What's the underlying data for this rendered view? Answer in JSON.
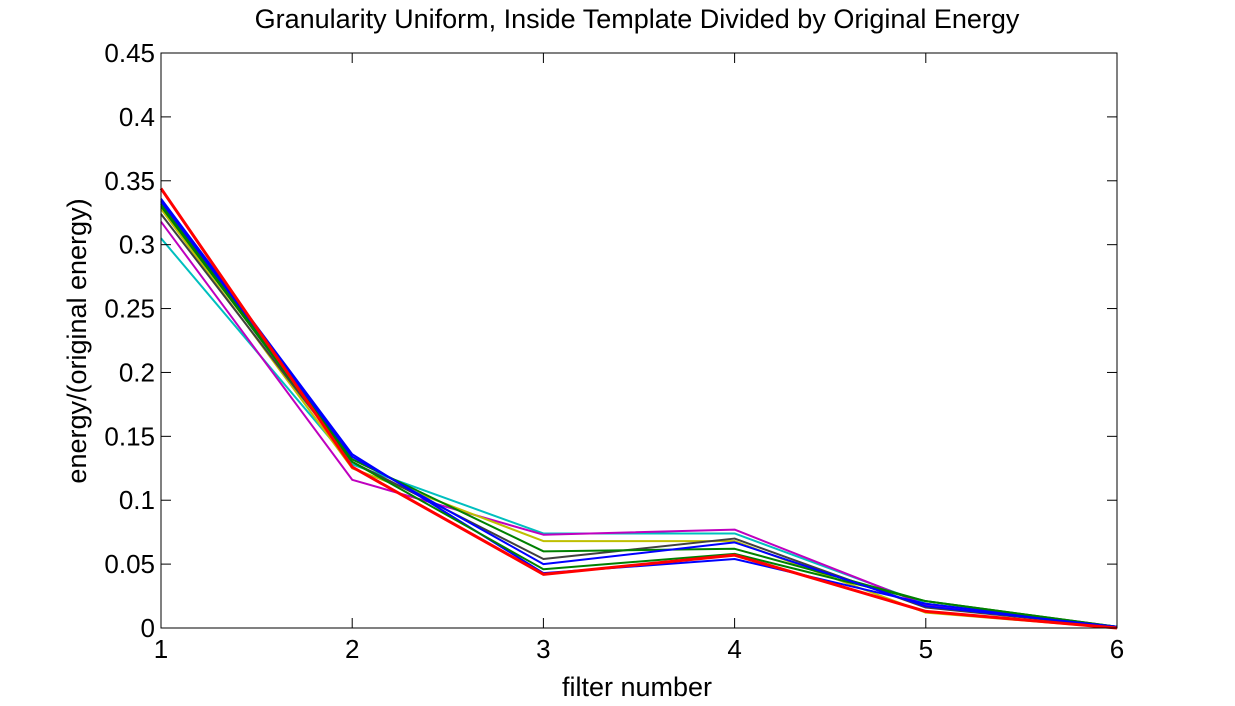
{
  "chart_data": {
    "type": "line",
    "title": "Granularity Uniform, Inside Template Divided by Original Energy",
    "xlabel": "filter number",
    "ylabel": "energy/(original energy)",
    "x": [
      1,
      2,
      3,
      4,
      5,
      6
    ],
    "xlim": [
      1,
      6
    ],
    "ylim": [
      0,
      0.45
    ],
    "xticks": [
      "1",
      "2",
      "3",
      "4",
      "5",
      "6"
    ],
    "yticks": [
      "0",
      "0.05",
      "0.1",
      "0.15",
      "0.2",
      "0.25",
      "0.3",
      "0.35",
      "0.4",
      "0.45"
    ],
    "grid": false,
    "legend": false,
    "series": [
      {
        "color": "#00bfbf",
        "values": [
          0.305,
          0.128,
          0.074,
          0.074,
          0.019,
          0.001
        ]
      },
      {
        "color": "#bf00bf",
        "values": [
          0.318,
          0.116,
          0.073,
          0.077,
          0.018,
          0.001
        ]
      },
      {
        "color": "#bfbf00",
        "values": [
          0.328,
          0.125,
          0.068,
          0.068,
          0.012,
          0.0
        ]
      },
      {
        "color": "#404040",
        "values": [
          0.324,
          0.13,
          0.054,
          0.07,
          0.016,
          0.001
        ]
      },
      {
        "color": "#008000",
        "values": [
          0.332,
          0.132,
          0.06,
          0.062,
          0.021,
          0.001
        ]
      },
      {
        "color": "#0000ff",
        "values": [
          0.336,
          0.136,
          0.043,
          0.054,
          0.019,
          0.001
        ]
      },
      {
        "color": "#008000",
        "values": [
          0.33,
          0.13,
          0.046,
          0.058,
          0.021,
          0.001
        ]
      },
      {
        "color": "#0000ff",
        "values": [
          0.334,
          0.134,
          0.05,
          0.067,
          0.017,
          0.001
        ]
      },
      {
        "color": "#ff0000",
        "values": [
          0.344,
          0.126,
          0.042,
          0.057,
          0.013,
          0.0
        ]
      }
    ]
  }
}
